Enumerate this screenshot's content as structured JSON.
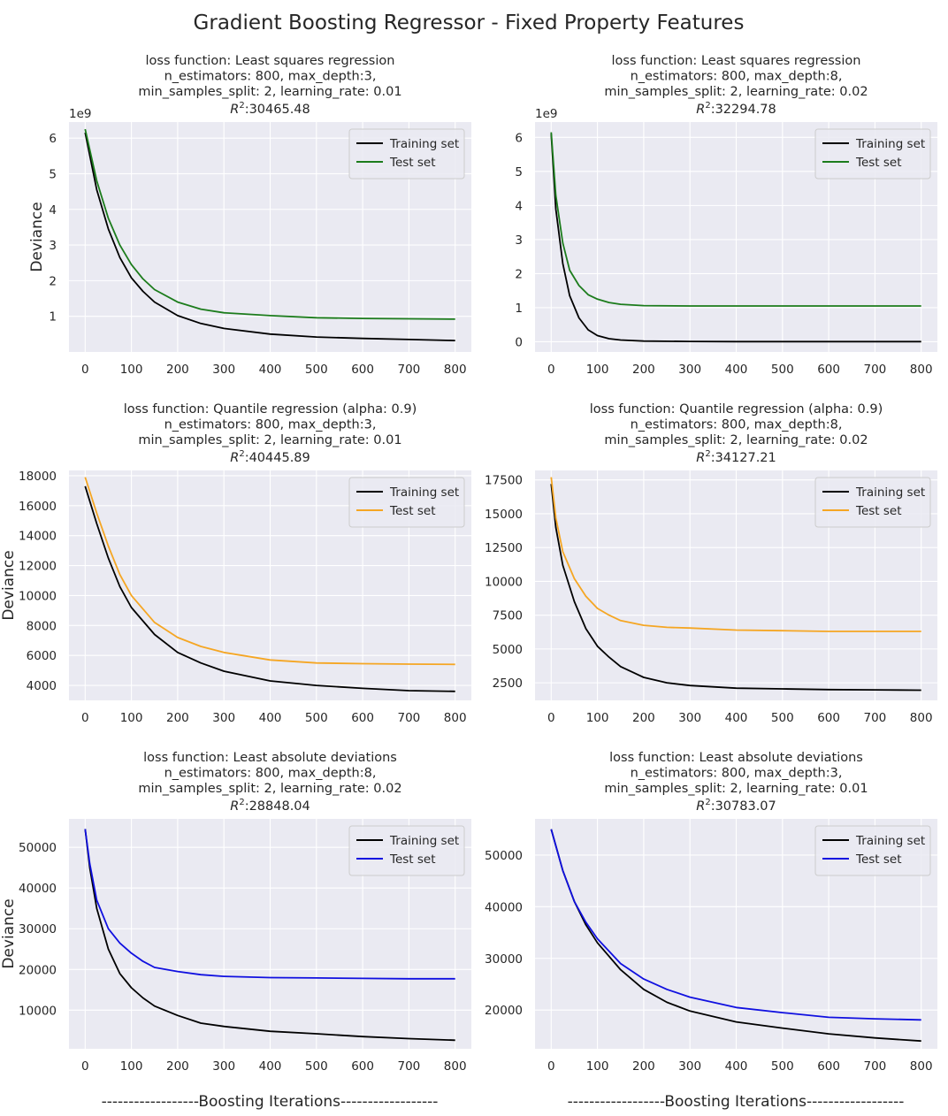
{
  "suptitle": "Gradient Boosting Regressor - Fixed Property Features",
  "xlabel_text": "------------------Boosting Iterations------------------",
  "chart_data": [
    {
      "type": "line",
      "title_lines": [
        "loss function: Least squares regression",
        "n_estimators: 800, max_depth:3,",
        "min_samples_split: 2, learning_rate: 0.01"
      ],
      "r2_label": "R",
      "r2_value": ":30465.48",
      "ylabel": "Deviance",
      "offset_text": "1e9",
      "xlim": [
        -35,
        835
      ],
      "ylim": [
        0.0,
        6.45
      ],
      "xticks": [
        0,
        100,
        200,
        300,
        400,
        500,
        600,
        700,
        800
      ],
      "yticks": [
        1,
        2,
        3,
        4,
        5,
        6
      ],
      "ytick_labels": [
        "1",
        "2",
        "3",
        "4",
        "5",
        "6"
      ],
      "legend": "upper right",
      "series": [
        {
          "name": "Training set",
          "color": "#000000",
          "x": [
            0,
            25,
            50,
            75,
            100,
            125,
            150,
            200,
            250,
            300,
            400,
            500,
            600,
            700,
            800
          ],
          "y": [
            6.15,
            4.55,
            3.45,
            2.65,
            2.08,
            1.7,
            1.4,
            1.02,
            0.8,
            0.66,
            0.5,
            0.42,
            0.38,
            0.35,
            0.32
          ]
        },
        {
          "name": "Test set",
          "color": "#1c7c1c",
          "x": [
            0,
            25,
            50,
            75,
            100,
            125,
            150,
            200,
            250,
            300,
            400,
            500,
            600,
            700,
            800
          ],
          "y": [
            6.25,
            4.8,
            3.75,
            3.0,
            2.45,
            2.05,
            1.75,
            1.4,
            1.2,
            1.1,
            1.02,
            0.96,
            0.94,
            0.93,
            0.92
          ]
        }
      ]
    },
    {
      "type": "line",
      "title_lines": [
        "loss function: Least squares regression",
        "n_estimators: 800, max_depth:8,",
        "min_samples_split: 2, learning_rate: 0.02"
      ],
      "r2_label": "R",
      "r2_value": ":32294.78",
      "ylabel": "",
      "offset_text": "1e9",
      "xlim": [
        -35,
        835
      ],
      "ylim": [
        -0.3,
        6.45
      ],
      "xticks": [
        0,
        100,
        200,
        300,
        400,
        500,
        600,
        700,
        800
      ],
      "yticks": [
        0,
        1,
        2,
        3,
        4,
        5,
        6
      ],
      "ytick_labels": [
        "0",
        "1",
        "2",
        "3",
        "4",
        "5",
        "6"
      ],
      "legend": "upper right",
      "series": [
        {
          "name": "Training set",
          "color": "#000000",
          "x": [
            0,
            10,
            25,
            40,
            60,
            80,
            100,
            125,
            150,
            200,
            300,
            400,
            500,
            600,
            700,
            800
          ],
          "y": [
            6.1,
            3.9,
            2.3,
            1.35,
            0.7,
            0.35,
            0.18,
            0.09,
            0.05,
            0.02,
            0.01,
            0.005,
            0.005,
            0.005,
            0.005,
            0.005
          ]
        },
        {
          "name": "Test set",
          "color": "#1c7c1c",
          "x": [
            0,
            10,
            25,
            40,
            60,
            80,
            100,
            125,
            150,
            200,
            300,
            400,
            500,
            600,
            700,
            800
          ],
          "y": [
            6.15,
            4.3,
            2.9,
            2.1,
            1.65,
            1.38,
            1.25,
            1.15,
            1.1,
            1.06,
            1.05,
            1.05,
            1.05,
            1.05,
            1.05,
            1.05
          ]
        }
      ]
    },
    {
      "type": "line",
      "title_lines": [
        "loss function: Quantile regression (alpha: 0.9)",
        "n_estimators: 800, max_depth:3,",
        "min_samples_split: 2, learning_rate: 0.01"
      ],
      "r2_label": "R",
      "r2_value": ":40445.89",
      "ylabel": "Deviance",
      "offset_text": "",
      "xlim": [
        -35,
        835
      ],
      "ylim": [
        3000,
        18350
      ],
      "xticks": [
        0,
        100,
        200,
        300,
        400,
        500,
        600,
        700,
        800
      ],
      "yticks": [
        4000,
        6000,
        8000,
        10000,
        12000,
        14000,
        16000,
        18000
      ],
      "ytick_labels": [
        "4000",
        "6000",
        "8000",
        "10000",
        "12000",
        "14000",
        "16000",
        "18000"
      ],
      "legend": "upper right",
      "series": [
        {
          "name": "Training set",
          "color": "#000000",
          "x": [
            0,
            25,
            50,
            75,
            100,
            150,
            200,
            250,
            300,
            400,
            500,
            600,
            700,
            800
          ],
          "y": [
            17300,
            14800,
            12500,
            10600,
            9200,
            7400,
            6200,
            5500,
            4950,
            4300,
            4000,
            3800,
            3650,
            3600
          ]
        },
        {
          "name": "Test set",
          "color": "#f5a623",
          "x": [
            0,
            25,
            50,
            75,
            100,
            150,
            200,
            250,
            300,
            400,
            500,
            600,
            700,
            800
          ],
          "y": [
            17900,
            15500,
            13300,
            11400,
            10000,
            8200,
            7200,
            6600,
            6200,
            5700,
            5500,
            5450,
            5420,
            5400
          ]
        }
      ]
    },
    {
      "type": "line",
      "title_lines": [
        "loss function: Quantile regression (alpha: 0.9)",
        "n_estimators: 800, max_depth:8,",
        "min_samples_split: 2, learning_rate: 0.02"
      ],
      "r2_label": "R",
      "r2_value": ":34127.21",
      "ylabel": "",
      "offset_text": "",
      "xlim": [
        -35,
        835
      ],
      "ylim": [
        1200,
        18200
      ],
      "xticks": [
        0,
        100,
        200,
        300,
        400,
        500,
        600,
        700,
        800
      ],
      "yticks": [
        2500,
        5000,
        7500,
        10000,
        12500,
        15000,
        17500
      ],
      "ytick_labels": [
        "2500",
        "5000",
        "7500",
        "10000",
        "12500",
        "15000",
        "17500"
      ],
      "legend": "upper right",
      "series": [
        {
          "name": "Training set",
          "color": "#000000",
          "x": [
            0,
            10,
            25,
            50,
            75,
            100,
            125,
            150,
            200,
            250,
            300,
            400,
            500,
            600,
            700,
            800
          ],
          "y": [
            17200,
            14000,
            11200,
            8500,
            6500,
            5200,
            4400,
            3700,
            2900,
            2500,
            2300,
            2100,
            2050,
            2000,
            1980,
            1950
          ]
        },
        {
          "name": "Test set",
          "color": "#f5a623",
          "x": [
            0,
            10,
            25,
            50,
            75,
            100,
            125,
            150,
            200,
            250,
            300,
            400,
            500,
            600,
            700,
            800
          ],
          "y": [
            17700,
            14700,
            12200,
            10200,
            8900,
            8000,
            7500,
            7100,
            6750,
            6600,
            6550,
            6400,
            6350,
            6300,
            6300,
            6300
          ]
        }
      ]
    },
    {
      "type": "line",
      "title_lines": [
        "loss function: Least absolute deviations",
        "n_estimators: 800, max_depth:8,",
        "min_samples_split: 2, learning_rate: 0.02"
      ],
      "r2_label": "R",
      "r2_value": ":28848.04",
      "ylabel": "Deviance",
      "offset_text": "",
      "xlim": [
        -35,
        835
      ],
      "ylim": [
        500,
        57000
      ],
      "xticks": [
        0,
        100,
        200,
        300,
        400,
        500,
        600,
        700,
        800
      ],
      "yticks": [
        10000,
        20000,
        30000,
        40000,
        50000
      ],
      "ytick_labels": [
        "10000",
        "20000",
        "30000",
        "40000",
        "50000"
      ],
      "legend": "upper right",
      "series": [
        {
          "name": "Training set",
          "color": "#000000",
          "x": [
            0,
            10,
            25,
            50,
            75,
            100,
            125,
            150,
            200,
            250,
            300,
            400,
            500,
            600,
            700,
            800
          ],
          "y": [
            54500,
            45000,
            35000,
            25000,
            19000,
            15500,
            13000,
            11000,
            8700,
            6800,
            6000,
            4800,
            4200,
            3500,
            3000,
            2600
          ]
        },
        {
          "name": "Test set",
          "color": "#1010e0",
          "x": [
            0,
            10,
            25,
            50,
            75,
            100,
            125,
            150,
            200,
            250,
            300,
            400,
            500,
            600,
            700,
            800
          ],
          "y": [
            54500,
            46000,
            37000,
            30000,
            26500,
            24000,
            22000,
            20500,
            19500,
            18700,
            18300,
            18000,
            17900,
            17800,
            17700,
            17700
          ]
        }
      ]
    },
    {
      "type": "line",
      "title_lines": [
        "loss function: Least absolute deviations",
        "n_estimators: 800, max_depth:3,",
        "min_samples_split: 2, learning_rate: 0.01"
      ],
      "r2_label": "R",
      "r2_value": ":30783.07",
      "ylabel": "",
      "offset_text": "",
      "xlim": [
        -35,
        835
      ],
      "ylim": [
        12500,
        57000
      ],
      "xticks": [
        0,
        100,
        200,
        300,
        400,
        500,
        600,
        700,
        800
      ],
      "yticks": [
        20000,
        30000,
        40000,
        50000
      ],
      "ytick_labels": [
        "20000",
        "30000",
        "40000",
        "50000"
      ],
      "legend": "upper right",
      "series": [
        {
          "name": "Training set",
          "color": "#000000",
          "x": [
            0,
            25,
            50,
            75,
            100,
            150,
            200,
            250,
            300,
            400,
            500,
            600,
            700,
            800
          ],
          "y": [
            55000,
            47000,
            41000,
            36500,
            33000,
            27800,
            24000,
            21500,
            19800,
            17700,
            16500,
            15400,
            14600,
            14000
          ]
        },
        {
          "name": "Test set",
          "color": "#1010e0",
          "x": [
            0,
            25,
            50,
            75,
            100,
            150,
            200,
            250,
            300,
            400,
            500,
            600,
            700,
            800
          ],
          "y": [
            55000,
            47000,
            41000,
            37000,
            33800,
            29000,
            26000,
            24000,
            22500,
            20500,
            19500,
            18600,
            18300,
            18100
          ]
        }
      ]
    }
  ]
}
